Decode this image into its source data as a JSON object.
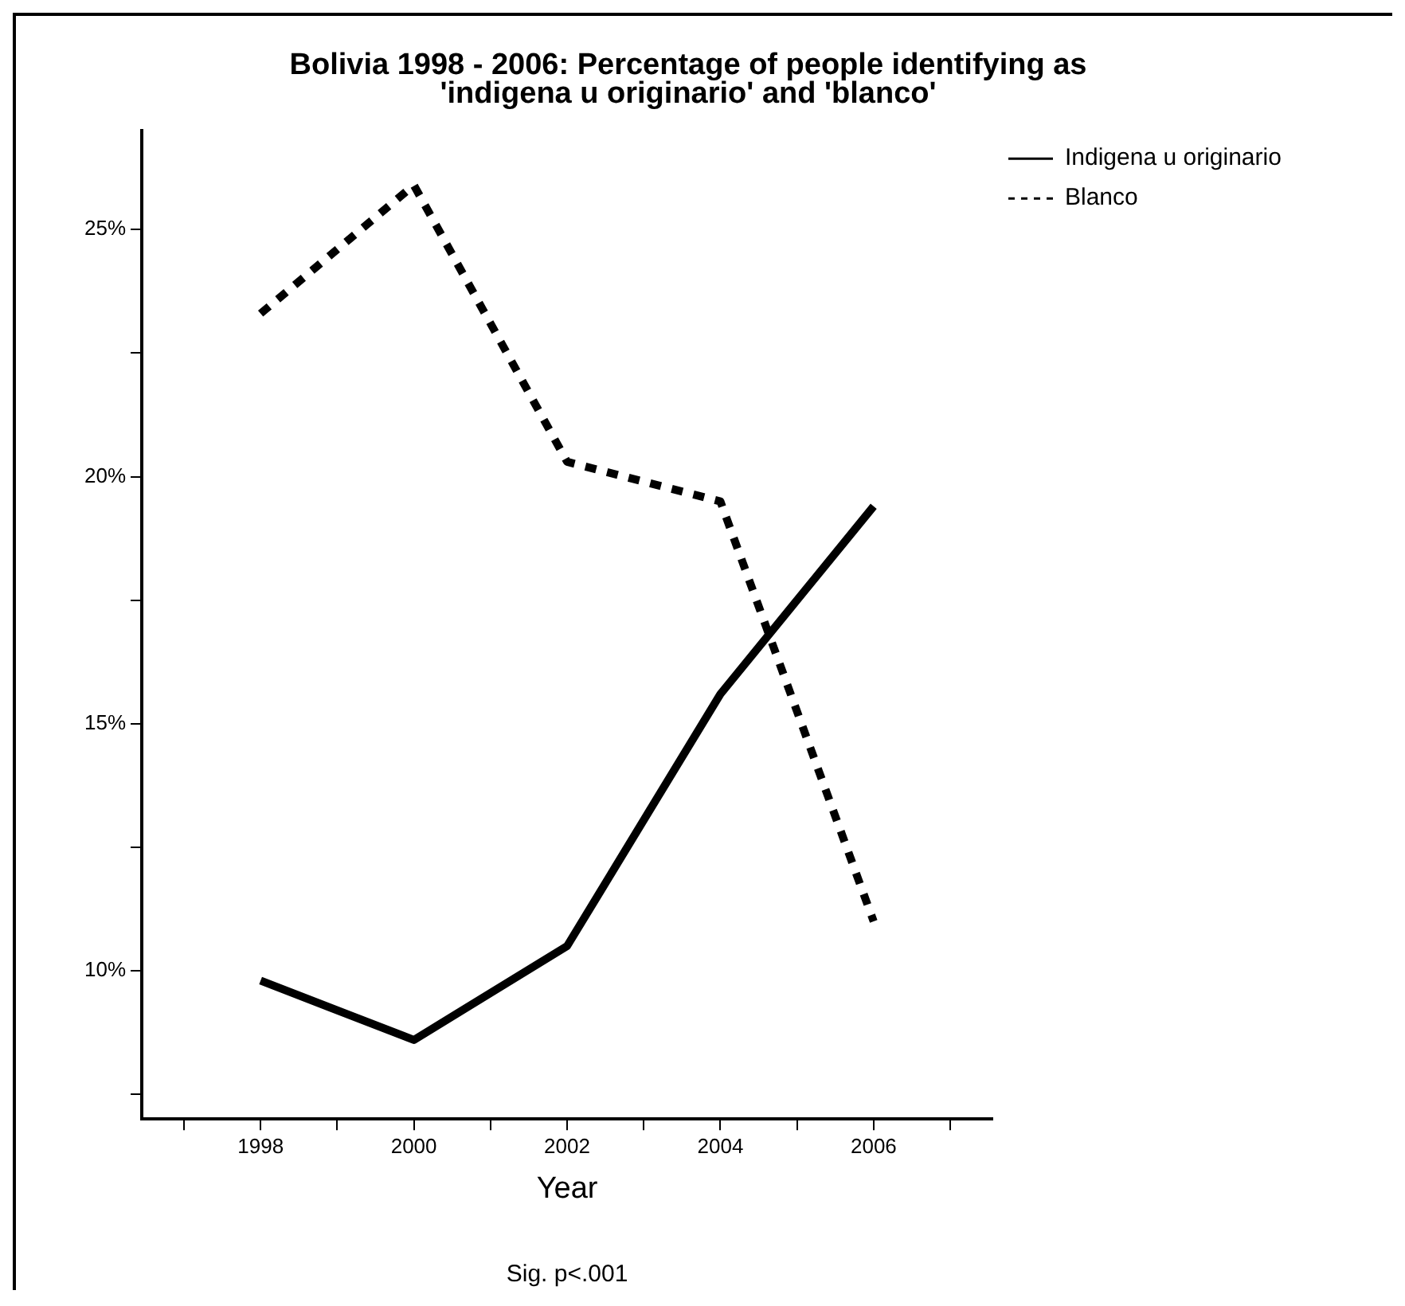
{
  "chart_data": {
    "type": "line",
    "title": "Bolivia 1998 - 2006: Percentage of people identifying as\n'indigena u originario' and 'blanco'",
    "xlabel": "Year",
    "annotations": [
      "Sig. p<.001"
    ],
    "x": [
      1998,
      2000,
      2002,
      2004,
      2006
    ],
    "series": [
      {
        "name": "Indigena u originario",
        "color": "#000000",
        "line_style": "solid",
        "values": [
          9.8,
          8.6,
          10.5,
          15.6,
          19.4
        ]
      },
      {
        "name": "Blanco",
        "color": "#000000",
        "line_style": "dashed",
        "values": [
          23.3,
          25.9,
          20.3,
          19.5,
          11.0
        ]
      }
    ],
    "xlim": [
      1996.45,
      2007.55
    ],
    "xticks": [
      {
        "value": 1997,
        "label": null
      },
      1998,
      {
        "value": 1999,
        "label": null
      },
      2000,
      {
        "value": 2001,
        "label": null
      },
      2002,
      {
        "value": 2003,
        "label": null
      },
      2004,
      {
        "value": 2005,
        "label": null
      },
      2006,
      {
        "value": 2007,
        "label": null
      }
    ],
    "ylim": [
      7,
      27
    ],
    "yticks": [
      {
        "value": 7.5,
        "label": null
      },
      {
        "value": 10,
        "label": "10%"
      },
      {
        "value": 12.5,
        "label": null
      },
      {
        "value": 15,
        "label": "15%"
      },
      {
        "value": 17.5,
        "label": null
      },
      {
        "value": 20,
        "label": "20%"
      },
      {
        "value": 22.5,
        "label": null
      },
      {
        "value": 25,
        "label": "25%"
      }
    ],
    "legend": "right",
    "marker": "none"
  }
}
